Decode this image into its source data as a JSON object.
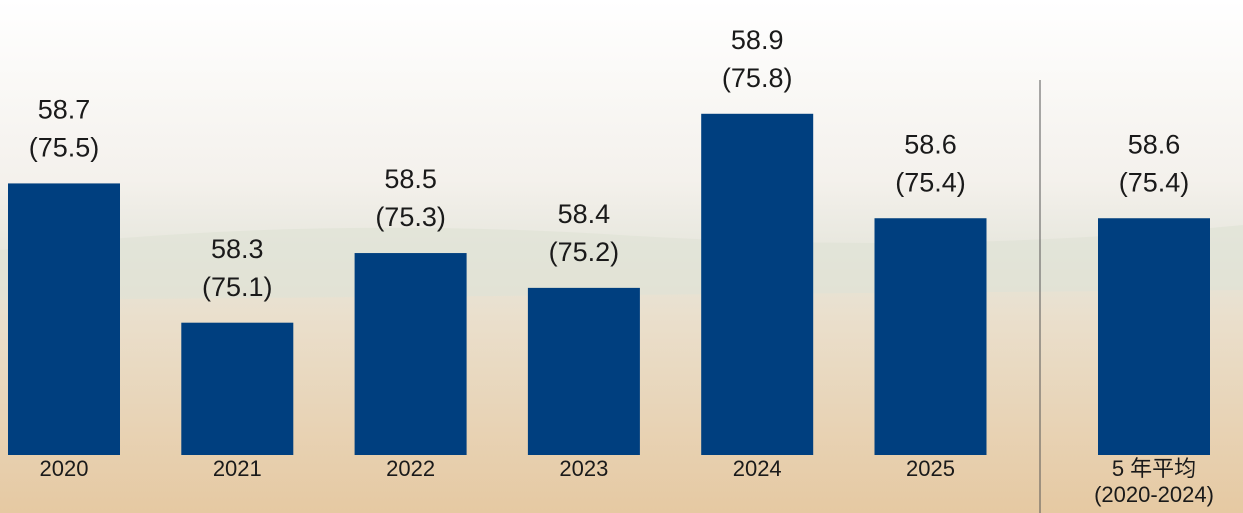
{
  "chart_data": {
    "type": "bar",
    "categories": [
      "2020",
      "2021",
      "2022",
      "2023",
      "2024",
      "2025",
      [
        "5 年平均",
        "(2020-2024)"
      ]
    ],
    "values": [
      58.7,
      58.3,
      58.5,
      58.4,
      58.9,
      58.6,
      58.6
    ],
    "secondary_labels": [
      "(75.5)",
      "(75.1)",
      "(75.3)",
      "(75.2)",
      "(75.8)",
      "(75.4)",
      "(75.4)"
    ],
    "color": "#003f7f",
    "ylim": [
      57.92,
      59.02
    ]
  }
}
